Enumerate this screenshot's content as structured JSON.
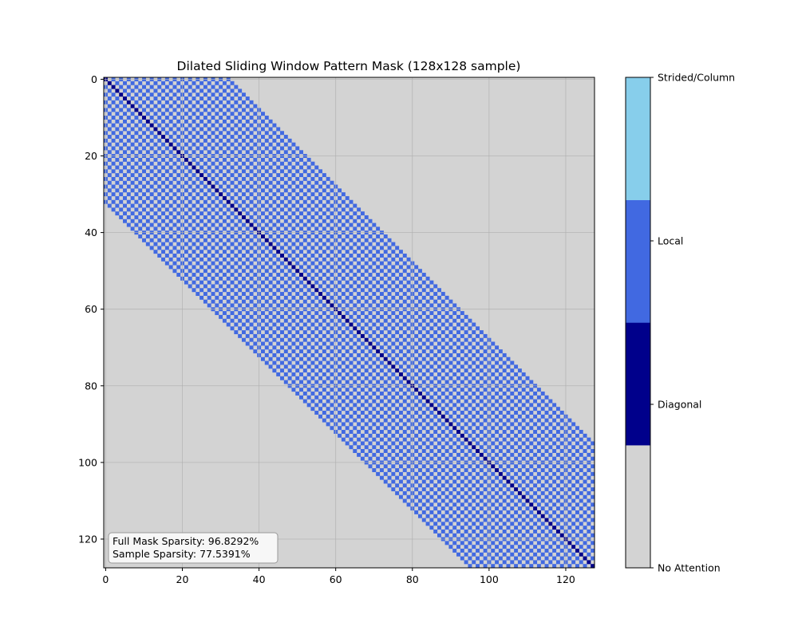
{
  "chart_data": {
    "type": "heatmap",
    "title": "Dilated Sliding Window Pattern Mask (128x128 sample)",
    "matrix_size": 128,
    "xlim": [
      0,
      128
    ],
    "ylim": [
      128,
      0
    ],
    "x_ticks": [
      0,
      20,
      40,
      60,
      80,
      100,
      120
    ],
    "y_ticks": [
      0,
      20,
      40,
      60,
      80,
      100,
      120
    ],
    "grid": true,
    "pattern": {
      "window_half_width": 33,
      "dilation": 2,
      "description_levels": {
        "none": 0,
        "diagonal": 1,
        "local": 2,
        "strided": 3
      }
    },
    "colorbar": {
      "labels": [
        "No Attention",
        "Diagonal",
        "Local",
        "Strided/Column"
      ],
      "colors": [
        "#d3d3d3",
        "#00008b",
        "#4169e1",
        "#87ceeb"
      ]
    },
    "annotations": {
      "full_sparsity": "Full Mask Sparsity: 96.8292%",
      "sample_sparsity": "Sample Sparsity: 77.5391%"
    }
  }
}
